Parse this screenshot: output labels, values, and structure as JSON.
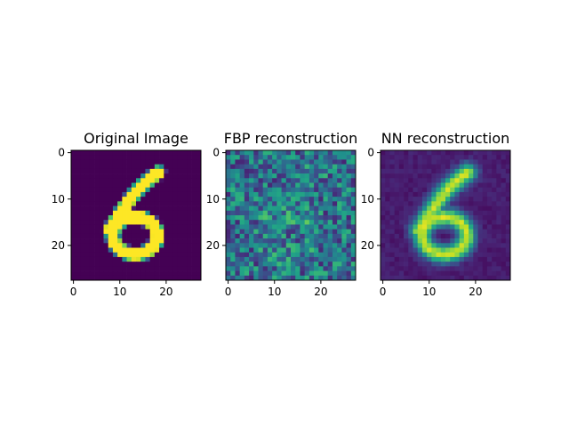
{
  "chart_data": [
    {
      "type": "heatmap",
      "title": "Original Image",
      "image_size": [
        28,
        28
      ],
      "colormap": "viridis",
      "value_range": [
        0,
        1
      ],
      "x_ticks": [
        "0",
        "10",
        "20"
      ],
      "y_ticks": [
        "0",
        "10",
        "20"
      ],
      "content": "MNIST digit 6, bright strokes on dark background"
    },
    {
      "type": "heatmap",
      "title": "FBP reconstruction",
      "image_size": [
        28,
        28
      ],
      "colormap": "viridis",
      "value_range": [
        0,
        1
      ],
      "x_ticks": [
        "0",
        "10",
        "20"
      ],
      "y_ticks": [
        "0",
        "10",
        "20"
      ],
      "content": "noisy filtered back-projection of digit 6"
    },
    {
      "type": "heatmap",
      "title": "NN reconstruction",
      "image_size": [
        28,
        28
      ],
      "colormap": "viridis",
      "value_range": [
        0,
        1
      ],
      "x_ticks": [
        "0",
        "10",
        "20"
      ],
      "y_ticks": [
        "0",
        "10",
        "20"
      ],
      "content": "smooth neural-network reconstruction of digit 6"
    }
  ]
}
